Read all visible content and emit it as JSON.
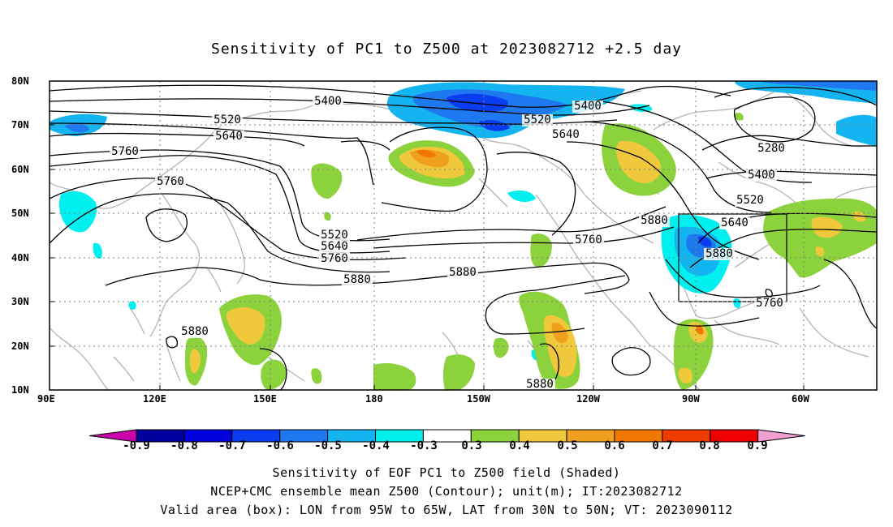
{
  "title": "Sensitivity of PC1 to Z500 at 2023082712 +2.5 day",
  "lat_labels": [
    "80N",
    "70N",
    "60N",
    "50N",
    "40N",
    "30N",
    "20N",
    "10N"
  ],
  "lon_labels": [
    "90E",
    "120E",
    "150E",
    "180",
    "150W",
    "120W",
    "90W",
    "60W"
  ],
  "contour_labels": [
    "5400",
    "5400",
    "5520",
    "5520",
    "5640",
    "5640",
    "5760",
    "5760",
    "5280",
    "5400",
    "5520",
    "5880",
    "5640",
    "5520",
    "5640",
    "5760",
    "5760",
    "5880",
    "5880",
    "5880",
    "5760",
    "5880",
    "5880"
  ],
  "colorbar": {
    "labels": [
      "-0.9",
      "-0.8",
      "-0.7",
      "-0.6",
      "-0.5",
      "-0.4",
      "-0.3",
      "0.3",
      "0.4",
      "0.5",
      "0.6",
      "0.7",
      "0.8",
      "0.9"
    ],
    "colors": [
      "#cc00aa",
      "#00009c",
      "#0000dc",
      "#0a3cf0",
      "#1e78f0",
      "#14b4f0",
      "#00f0f0",
      "#ffffff",
      "#8cd23c",
      "#f0c83c",
      "#f0a01e",
      "#f07800",
      "#f03c00",
      "#f00000",
      "#f0a0d0"
    ]
  },
  "captions": {
    "line1": "Sensitivity of EOF PC1 to Z500 field (Shaded)",
    "line2": "NCEP+CMC ensemble mean Z500 (Contour); unit(m); IT:2023082712",
    "line3": "Valid area (box): LON from 95W to 65W, LAT from 30N to 50N; VT: 2023090112"
  }
}
